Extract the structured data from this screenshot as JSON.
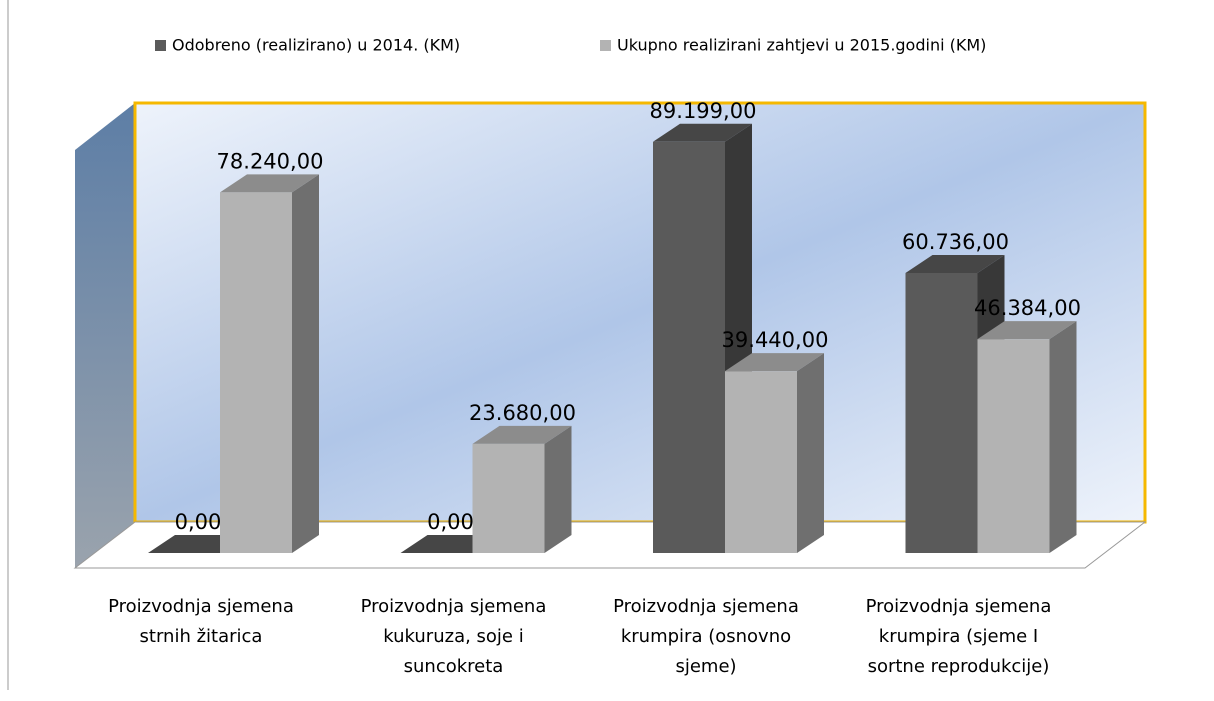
{
  "chart_data": {
    "type": "bar3d",
    "categories": [
      [
        "Proizvodnja sjemena",
        "strnih žitarica"
      ],
      [
        "Proizvodnja sjemena",
        "kukuruza, soje i",
        "suncokreta"
      ],
      [
        "Proizvodnja sjemena",
        "krumpira (osnovno",
        "sjeme)"
      ],
      [
        "Proizvodnja sjemena",
        "krumpira (sjeme I",
        "sortne reprodukcije)"
      ]
    ],
    "series": [
      {
        "name": "Odobreno (realizirano) u 2014. (KM)",
        "color": "#5a5a5a",
        "values": [
          0,
          0,
          89199,
          60736
        ],
        "value_labels": [
          "0,00",
          "0,00",
          "89.199,00",
          "60.736,00"
        ]
      },
      {
        "name": "Ukupno realizirani zahtjevi u 2015.godini (KM)",
        "color": "#b3b3b3",
        "values": [
          78240,
          23680,
          39440,
          46384
        ],
        "value_labels": [
          "78.240,00",
          "23.680,00",
          "39.440,00",
          "46.384,00"
        ]
      }
    ],
    "ylim": [
      0,
      100000
    ]
  }
}
